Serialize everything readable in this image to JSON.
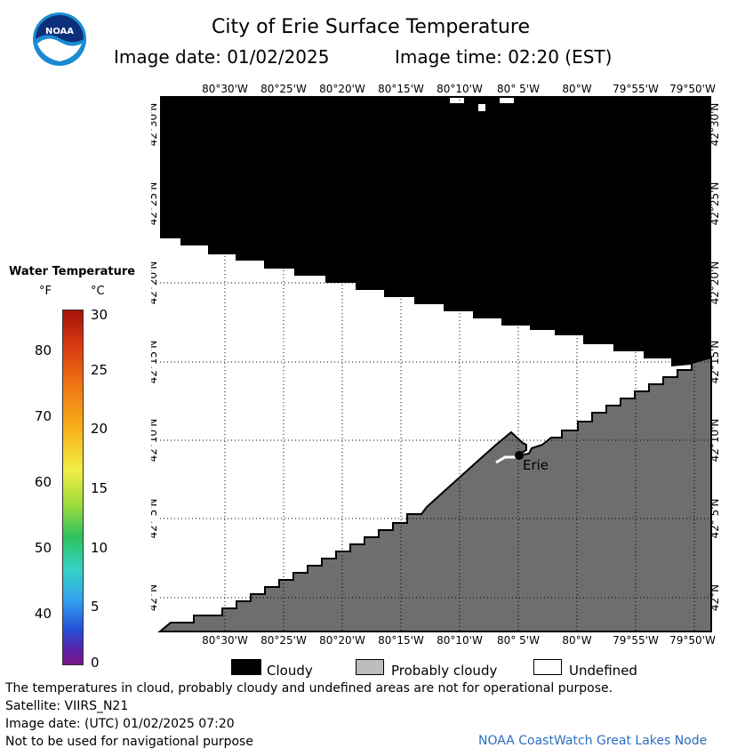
{
  "header": {
    "title": "City of Erie Surface Temperature",
    "image_date": "Image date: 01/02/2025",
    "image_time": "Image time: 02:20 (EST)"
  },
  "logo": {
    "text": "NOAA",
    "colors": {
      "outer": "#1a8bd2",
      "inner": "#0b2f78"
    }
  },
  "legend": {
    "title": "Water Temperature",
    "unit_f": "°F",
    "unit_c": "°C",
    "f_ticks": [
      "80",
      "70",
      "60",
      "50",
      "40"
    ],
    "c_ticks": [
      "30",
      "25",
      "20",
      "15",
      "10",
      "5",
      "0"
    ]
  },
  "map": {
    "lon_labels": [
      "80°30'W",
      "80°25'W",
      "80°20'W",
      "80°15'W",
      "80°10'W",
      "80° 5'W",
      "80°W",
      "79°55'W",
      "79°50'W"
    ],
    "lat_labels": [
      "42°30'N",
      "42°25'N",
      "42°20'N",
      "42°15'N",
      "42°10'N",
      "42° 5'N",
      "42°N"
    ],
    "city": "Erie",
    "colors": {
      "cloud": "#000000",
      "probably_cloudy": "#6e6e6e",
      "undefined": "#ffffff"
    }
  },
  "key": {
    "cloudy": "Cloudy",
    "probably_cloudy": "Probably cloudy",
    "undefined": "Undefined"
  },
  "footer": {
    "disclaimer": "The temperatures in cloud, probably cloudy and undefined areas are not for operational purpose.",
    "satellite": "Satellite: VIIRS_N21",
    "utc_date": "Image date: (UTC) 01/02/2025  07:20",
    "nav_warning": "Not to be used for navigational purpose",
    "node": "NOAA CoastWatch Great Lakes Node"
  }
}
